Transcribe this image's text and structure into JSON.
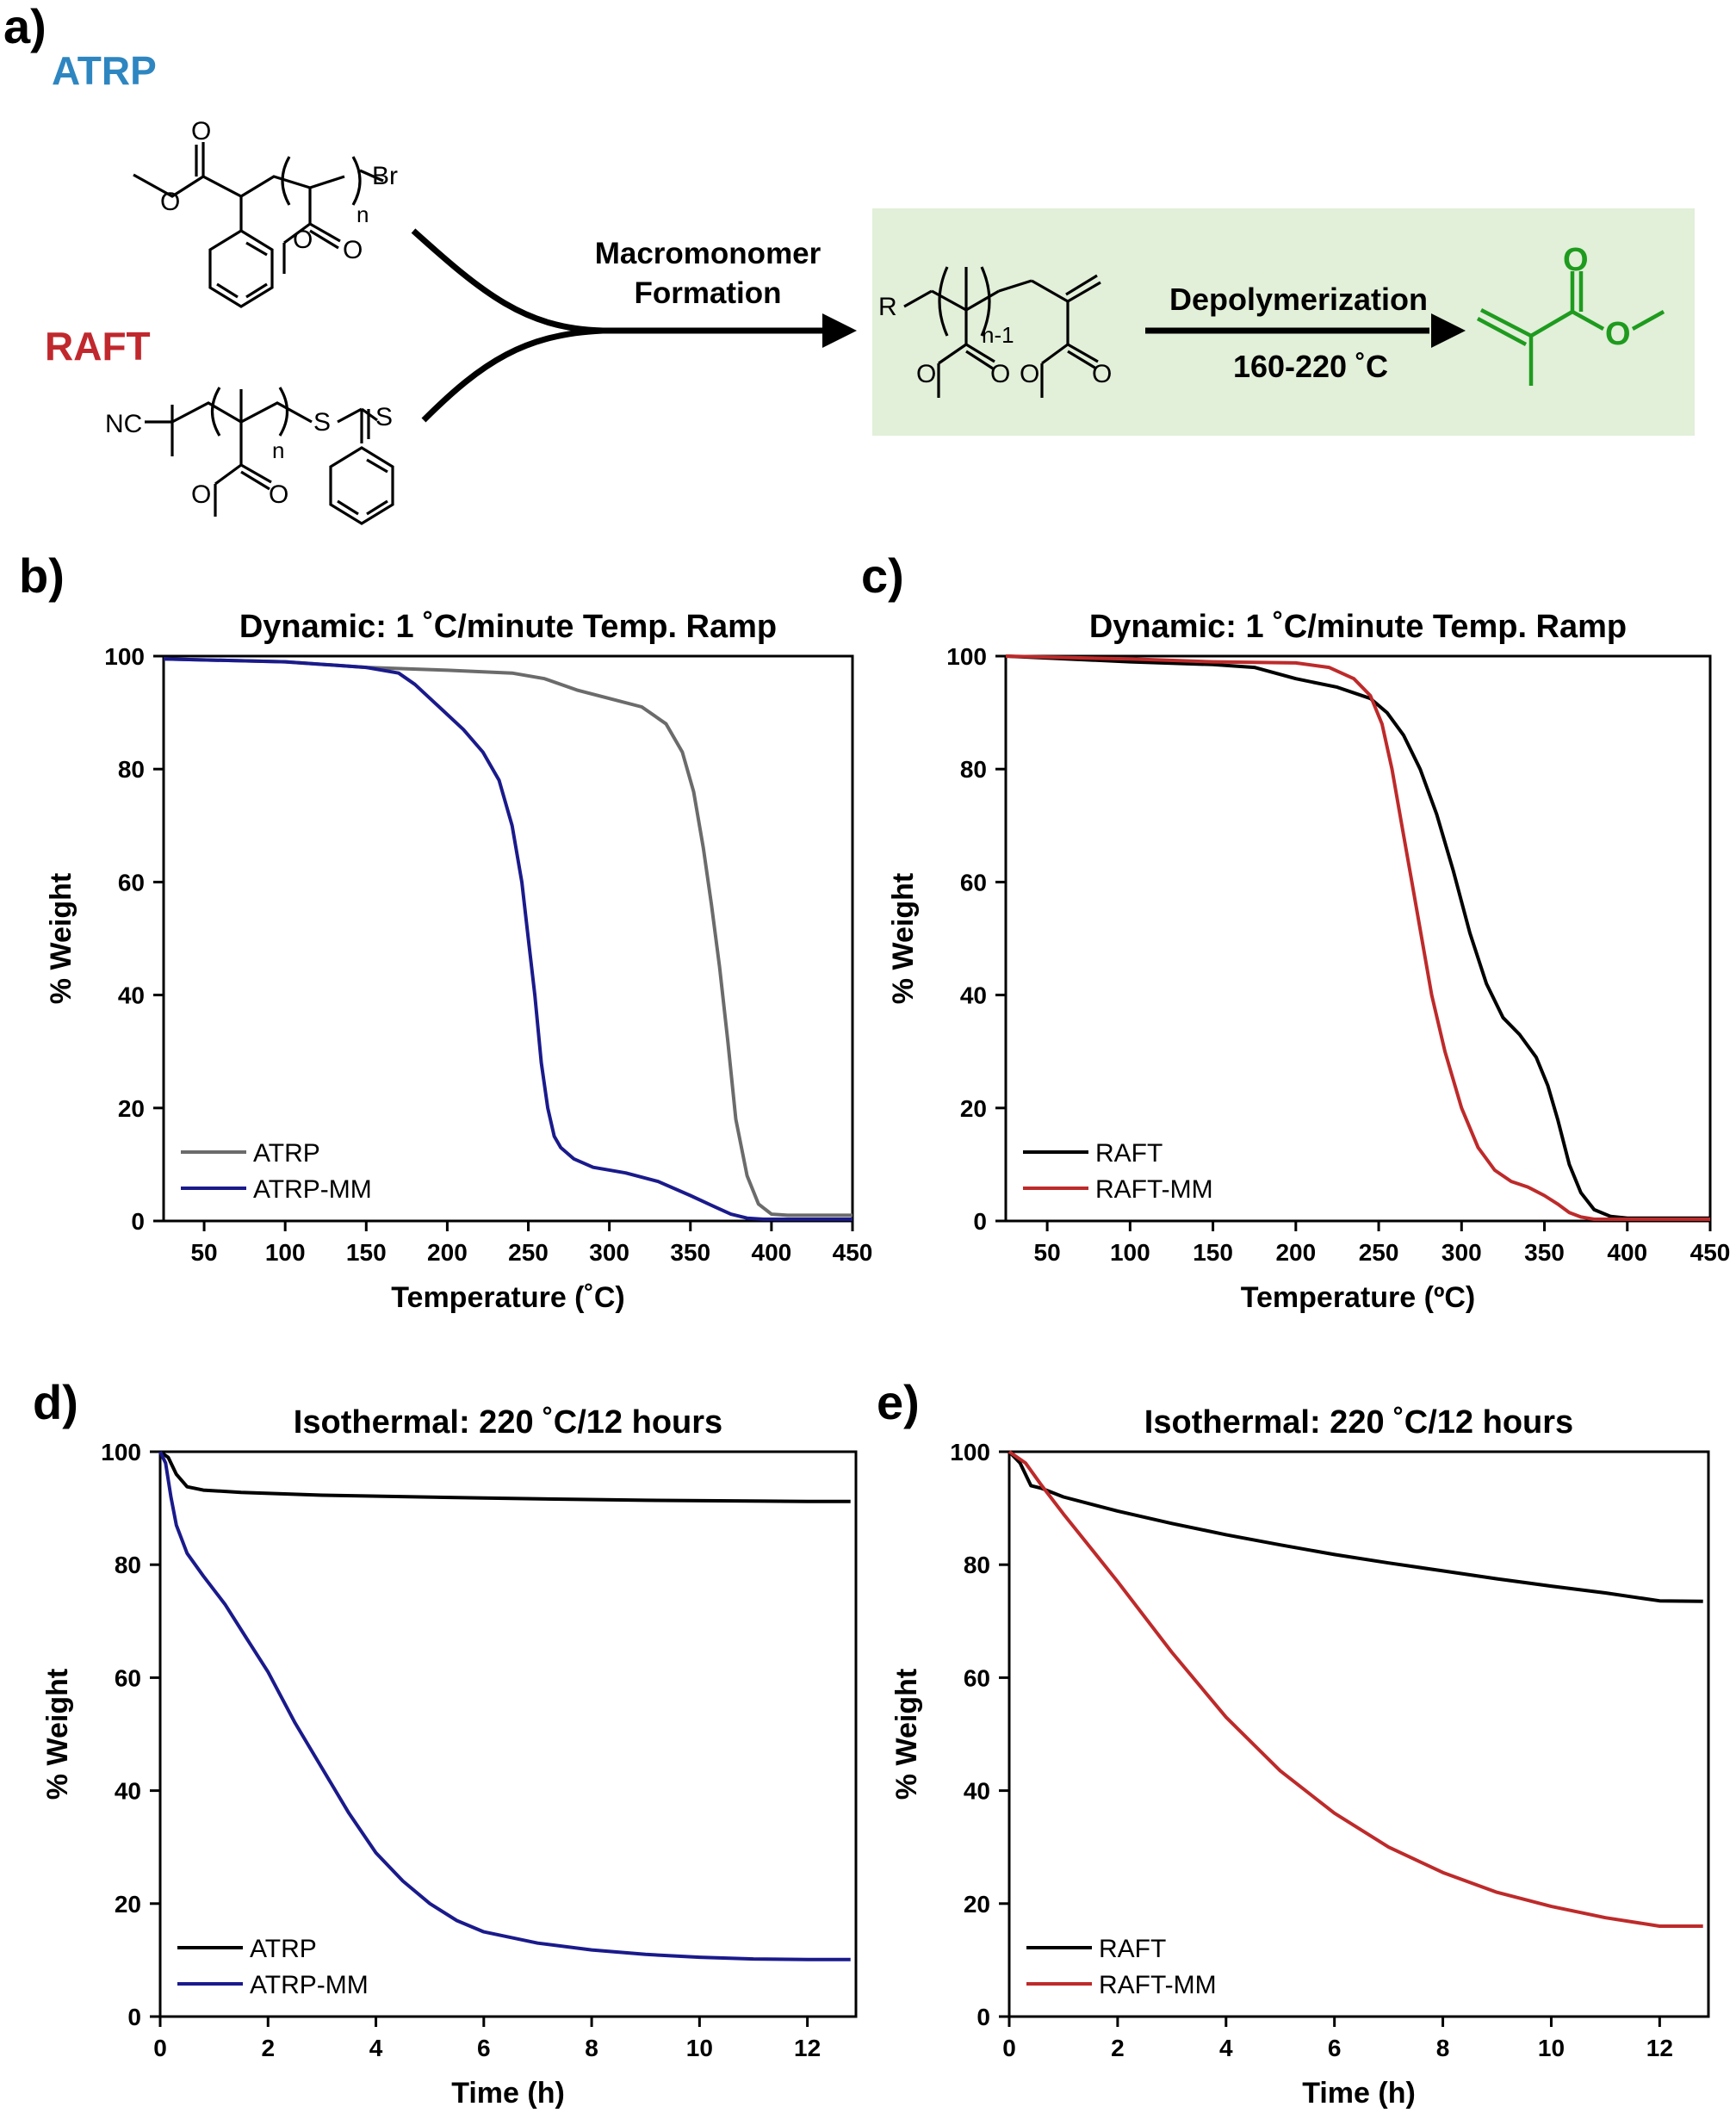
{
  "figure": {
    "panel_labels": {
      "a": "a)",
      "b": "b)",
      "c": "c)",
      "d": "d)",
      "e": "e)"
    },
    "colors": {
      "atrp_blue": "#2E86C1",
      "raft_red": "#C0282D",
      "product_green": "#1E9B1E",
      "box_green": "#E2EFD9",
      "line_grey": "#6B6B6B",
      "line_black": "#000000",
      "line_navy": "#1A1A8C",
      "line_red": "#BE2A2A"
    }
  },
  "scheme": {
    "atrp_label": "ATRP",
    "raft_label": "RAFT",
    "arrow1_label_line1": "Macromonomer",
    "arrow1_label_line2": "Formation",
    "arrow2_label": "Depolymerization",
    "arrow2_conditions": "160-220 ˚C",
    "atom_br": "Br",
    "atom_nc": "NC",
    "atom_s1": "S",
    "atom_s2": "S",
    "atom_r": "R",
    "atom_o": "O",
    "sub_n": "n",
    "sub_n1": "n-1"
  },
  "chart_data": [
    {
      "id": "b",
      "type": "line",
      "title": "Dynamic: 1 ˚C/minute Temp. Ramp",
      "xlabel": "Temperature (˚C)",
      "ylabel": "% Weight",
      "xlim": [
        25,
        450
      ],
      "ylim": [
        0,
        100
      ],
      "xticks": [
        50,
        100,
        150,
        200,
        250,
        300,
        350,
        400,
        450
      ],
      "yticks": [
        0,
        20,
        40,
        60,
        80,
        100
      ],
      "legend": "bottom-left",
      "series": [
        {
          "name": "ATRP",
          "color": "#6B6B6B",
          "x": [
            25,
            100,
            150,
            200,
            240,
            260,
            280,
            300,
            320,
            335,
            345,
            352,
            358,
            363,
            368,
            373,
            378,
            385,
            392,
            400,
            410,
            450
          ],
          "y": [
            99.5,
            99,
            98,
            97.5,
            97,
            96,
            94,
            92.5,
            91,
            88,
            83,
            76,
            66,
            56,
            45,
            32,
            18,
            8,
            3,
            1.2,
            1,
            1
          ]
        },
        {
          "name": "ATRP-MM",
          "color": "#1A1A8C",
          "x": [
            25,
            100,
            150,
            170,
            180,
            195,
            210,
            222,
            232,
            240,
            246,
            250,
            254,
            258,
            262,
            266,
            270,
            278,
            290,
            310,
            330,
            350,
            365,
            375,
            385,
            395,
            450
          ],
          "y": [
            99.5,
            99,
            98,
            97,
            95,
            91,
            87,
            83,
            78,
            70,
            60,
            50,
            40,
            28,
            20,
            15,
            13,
            11,
            9.5,
            8.5,
            7,
            4.5,
            2.5,
            1.2,
            0.5,
            0.3,
            0.3
          ]
        }
      ]
    },
    {
      "id": "c",
      "type": "line",
      "title": "Dynamic: 1 ˚C/minute Temp. Ramp",
      "xlabel": "Temperature (ºC)",
      "ylabel": "% Weight",
      "xlim": [
        25,
        450
      ],
      "ylim": [
        0,
        100
      ],
      "xticks": [
        50,
        100,
        150,
        200,
        250,
        300,
        350,
        400,
        450
      ],
      "yticks": [
        0,
        20,
        40,
        60,
        80,
        100
      ],
      "legend": "bottom-left",
      "series": [
        {
          "name": "RAFT",
          "color": "#000000",
          "x": [
            25,
            100,
            150,
            175,
            200,
            225,
            245,
            255,
            265,
            275,
            285,
            295,
            305,
            315,
            325,
            335,
            345,
            352,
            358,
            365,
            372,
            380,
            390,
            400,
            450
          ],
          "y": [
            100,
            99,
            98.5,
            98,
            96,
            94.5,
            92.5,
            90,
            86,
            80,
            72,
            62,
            51,
            42,
            36,
            33,
            29,
            24,
            18,
            10,
            5,
            2,
            0.8,
            0.5,
            0.5
          ]
        },
        {
          "name": "RAFT-MM",
          "color": "#BE2A2A",
          "x": [
            25,
            100,
            150,
            200,
            220,
            235,
            245,
            252,
            258,
            264,
            270,
            276,
            282,
            290,
            300,
            310,
            320,
            330,
            340,
            350,
            358,
            365,
            372,
            380,
            450
          ],
          "y": [
            100,
            99.5,
            99,
            98.8,
            98,
            96,
            93,
            88,
            80,
            70,
            60,
            50,
            40,
            30,
            20,
            13,
            9,
            7,
            6,
            4.5,
            3,
            1.5,
            0.7,
            0.3,
            0.3
          ]
        }
      ]
    },
    {
      "id": "d",
      "type": "line",
      "title": "Isothermal: 220 ˚C/12 hours",
      "xlabel": "Time (h)",
      "ylabel": "% Weight",
      "xlim": [
        0,
        12.9
      ],
      "ylim": [
        0,
        100
      ],
      "xticks": [
        0,
        2,
        4,
        6,
        8,
        10,
        12
      ],
      "yticks": [
        0,
        20,
        40,
        60,
        80,
        100
      ],
      "legend": "bottom-left",
      "series": [
        {
          "name": "ATRP",
          "color": "#000000",
          "x": [
            0,
            0.15,
            0.3,
            0.5,
            0.8,
            1.5,
            3,
            6,
            9,
            12,
            12.8
          ],
          "y": [
            100,
            99,
            96,
            93.8,
            93.2,
            92.8,
            92.3,
            91.8,
            91.4,
            91.2,
            91.2
          ]
        },
        {
          "name": "ATRP-MM",
          "color": "#1A1A8C",
          "x": [
            0,
            0.1,
            0.2,
            0.3,
            0.5,
            0.8,
            1.2,
            1.6,
            2,
            2.5,
            3,
            3.5,
            4,
            4.5,
            5,
            5.5,
            6,
            7,
            8,
            9,
            10,
            11,
            12,
            12.8
          ],
          "y": [
            100,
            98,
            92,
            87,
            82,
            78,
            73,
            67,
            61,
            52,
            44,
            36,
            29,
            24,
            20,
            17,
            15,
            13,
            11.8,
            11,
            10.5,
            10.2,
            10.1,
            10.1
          ]
        }
      ]
    },
    {
      "id": "e",
      "type": "line",
      "title": "Isothermal: 220 ˚C/12 hours",
      "xlabel": "Time (h)",
      "ylabel": "% Weight",
      "xlim": [
        0,
        12.9
      ],
      "ylim": [
        0,
        100
      ],
      "xticks": [
        0,
        2,
        4,
        6,
        8,
        10,
        12
      ],
      "yticks": [
        0,
        20,
        40,
        60,
        80,
        100
      ],
      "legend": "bottom-left",
      "series": [
        {
          "name": "RAFT",
          "color": "#000000",
          "x": [
            0,
            0.2,
            0.4,
            0.6,
            1,
            2,
            3,
            4,
            5,
            6,
            7,
            8,
            9,
            10,
            11,
            12,
            12.8
          ],
          "y": [
            100,
            98,
            94,
            93.5,
            92,
            89.5,
            87.3,
            85.3,
            83.5,
            81.8,
            80.3,
            78.9,
            77.5,
            76.2,
            75,
            73.6,
            73.5
          ]
        },
        {
          "name": "RAFT-MM",
          "color": "#BE2A2A",
          "x": [
            0,
            0.3,
            0.6,
            1,
            1.5,
            2,
            3,
            4,
            5,
            6,
            7,
            8,
            9,
            10,
            11,
            12,
            12.8
          ],
          "y": [
            100,
            98,
            94,
            89,
            83,
            77,
            64.5,
            53,
            43.5,
            36,
            30,
            25.5,
            22,
            19.5,
            17.5,
            16,
            16
          ]
        }
      ]
    }
  ]
}
